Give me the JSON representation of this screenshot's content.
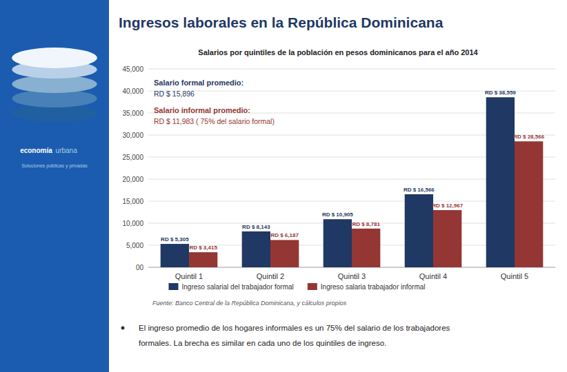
{
  "chart_data": {
    "type": "bar",
    "title": "Ingresos laborales en la República Dominicana",
    "subtitle": "Salarios por quintiles de la población en pesos dominicanos para el año 2014",
    "categories": [
      "Quintil 1",
      "Quintil 2",
      "Quintil 3",
      "Quintil 4",
      "Quintil 5"
    ],
    "series": [
      {
        "name": "Ingreso salarial del trabajador formal",
        "color": "#1F3864",
        "values": [
          5305,
          8143,
          10905,
          16566,
          38559
        ],
        "value_labels": [
          "RD $ 5,305",
          "RD $ 8,143",
          "RD $ 10,905",
          "RD $ 16,566",
          "RD $ 38,559"
        ]
      },
      {
        "name": "Ingreso salaria trabajador informal",
        "color": "#943634",
        "values": [
          3415,
          6187,
          8781,
          12967,
          28566
        ],
        "value_labels": [
          "RD $ 3,415",
          "RD $ 6,187",
          "RD $ 8,781",
          "RD $ 12,967",
          "RD $ 28,566"
        ]
      }
    ],
    "ylim": [
      0,
      45000
    ],
    "yticks": [
      {
        "value": 0,
        "label": "00"
      },
      {
        "value": 5000,
        "label": "5,000"
      },
      {
        "value": 10000,
        "label": "10,000"
      },
      {
        "value": 15000,
        "label": "15,000"
      },
      {
        "value": 20000,
        "label": "20,000"
      },
      {
        "value": 25000,
        "label": "25,000"
      },
      {
        "value": 30000,
        "label": "30,000"
      },
      {
        "value": 35000,
        "label": "35,000"
      },
      {
        "value": 40000,
        "label": "40,000"
      },
      {
        "value": 45000,
        "label": "45,000"
      }
    ],
    "grid": true,
    "legend": "bottom",
    "data_labels": true,
    "annotations": [
      {
        "text": "Salario formal promedio:",
        "color": "#1F3864"
      },
      {
        "text": "RD $ 15,896",
        "color": "#1F3864"
      },
      {
        "text": "Salario informal promedio:",
        "color": "#943634"
      },
      {
        "text": "RD $ 11,983 ( 75% del salario formal)",
        "color": "#943634"
      }
    ],
    "source": "Fuente: Banco  Central de la República Dominicana, y cálculos propios",
    "notes": [
      "El ingreso promedio de los hogares informales es un 75% del salario de los trabajadores",
      "formales. La brecha es similar en cada uno de los quintiles de ingreso."
    ],
    "branding": [
      "economía",
      "urbana",
      "Soluciones públicas y privadas"
    ]
  }
}
